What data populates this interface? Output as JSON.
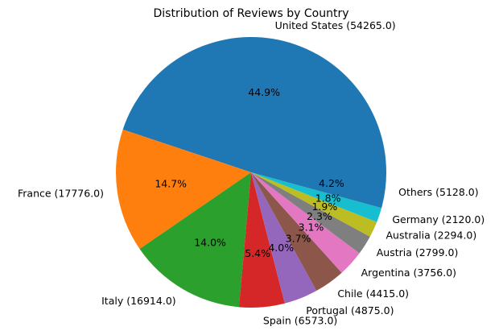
{
  "chart_data": {
    "type": "pie",
    "title": "Distribution of Reviews by Country",
    "start_angle_deg": 0,
    "direction": "counterclockwise",
    "slices": [
      {
        "label": "United States (54265.0)",
        "value": 54265.0,
        "pct_label": "44.9%",
        "color": "#1f77b4"
      },
      {
        "label": "France (17776.0)",
        "value": 17776.0,
        "pct_label": "14.7%",
        "color": "#ff7f0e"
      },
      {
        "label": "Italy (16914.0)",
        "value": 16914.0,
        "pct_label": "14.0%",
        "color": "#2ca02c"
      },
      {
        "label": "Spain (6573.0)",
        "value": 6573.0,
        "pct_label": "5.4%",
        "color": "#d62728"
      },
      {
        "label": "Portugal (4875.0)",
        "value": 4875.0,
        "pct_label": "4.0%",
        "color": "#9467bd"
      },
      {
        "label": "Chile (4415.0)",
        "value": 4415.0,
        "pct_label": "3.7%",
        "color": "#8c564b"
      },
      {
        "label": "Argentina (3756.0)",
        "value": 3756.0,
        "pct_label": "3.1%",
        "color": "#e377c2"
      },
      {
        "label": "Austria (2799.0)",
        "value": 2799.0,
        "pct_label": "2.3%",
        "color": "#7f7f7f"
      },
      {
        "label": "Australia (2294.0)",
        "value": 2294.0,
        "pct_label": "1.9%",
        "color": "#bcbd22"
      },
      {
        "label": "Germany (2120.0)",
        "value": 2120.0,
        "pct_label": "1.8%",
        "color": "#17becf"
      },
      {
        "label": "Others (5128.0)",
        "value": 5128.0,
        "pct_label": "4.2%",
        "color": "#1f77b4"
      }
    ]
  }
}
